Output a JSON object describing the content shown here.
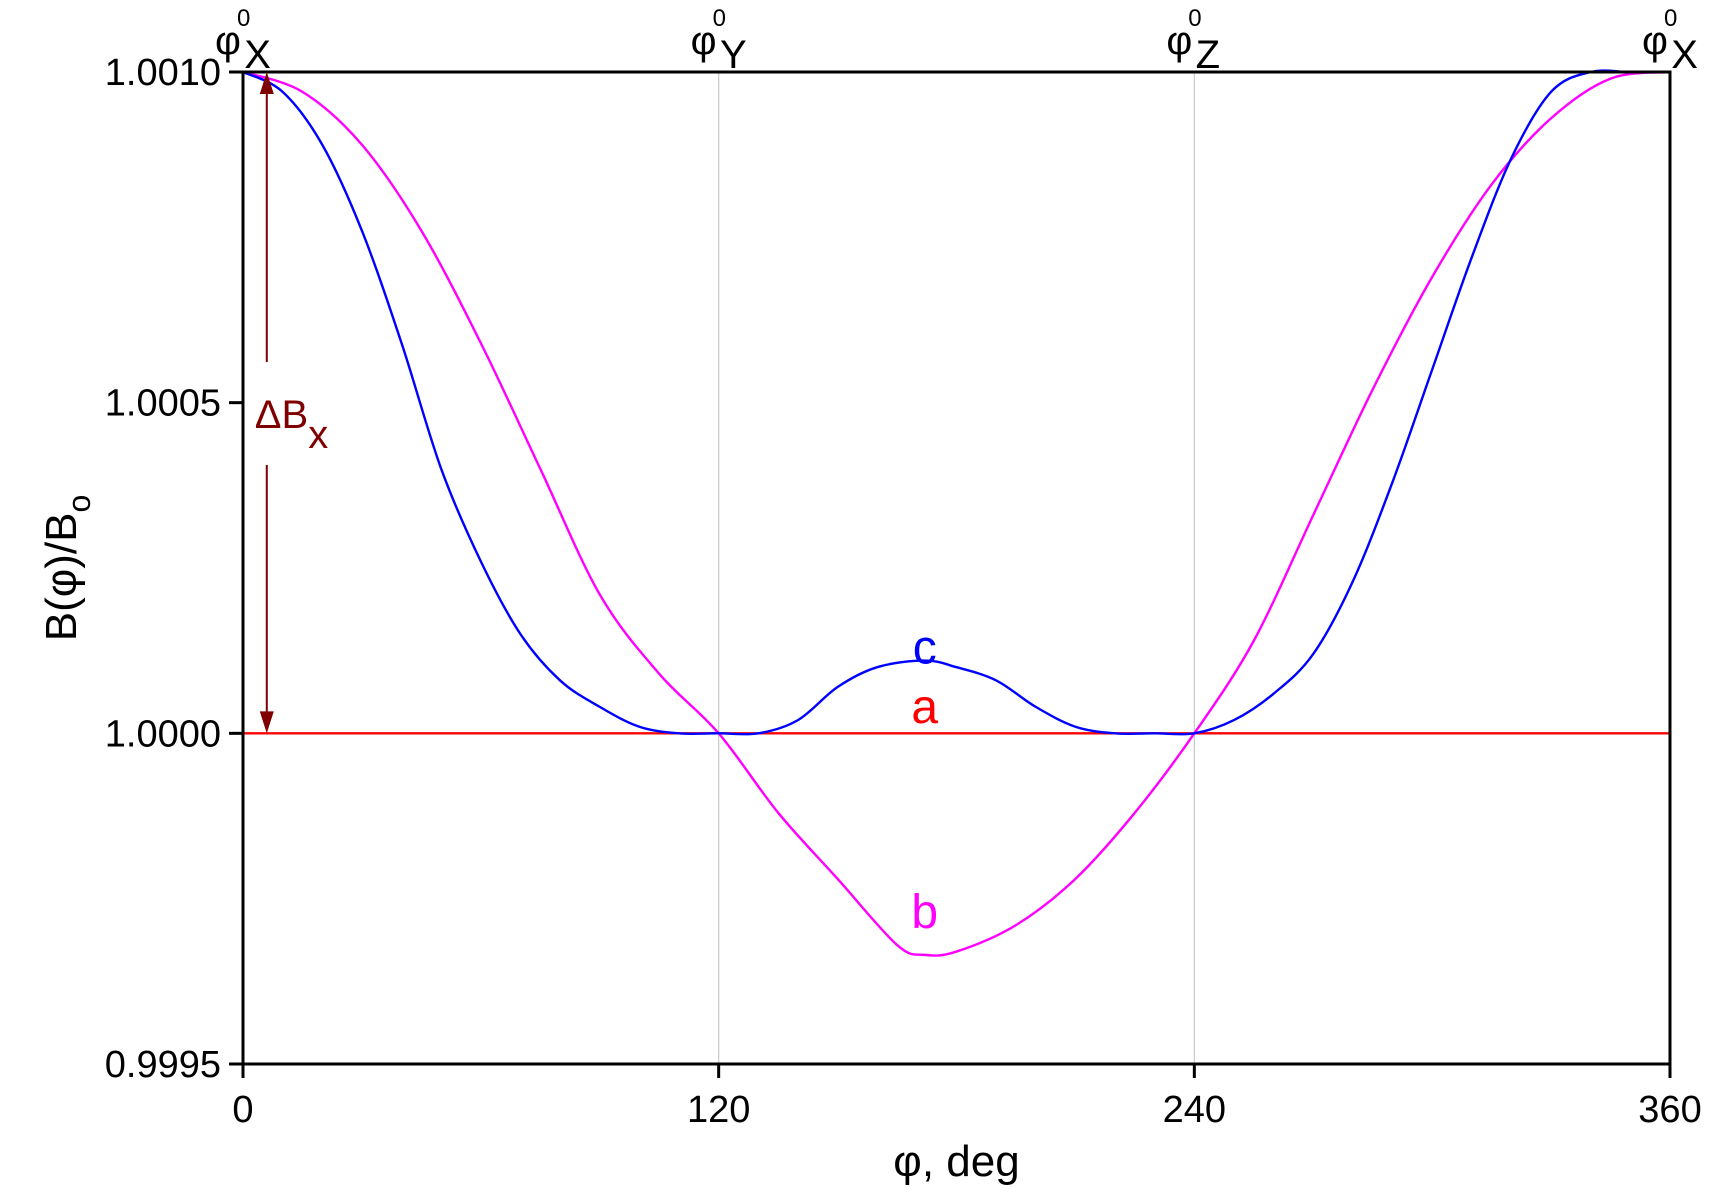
{
  "chart_data": {
    "type": "line",
    "xlabel": "φ, deg",
    "ylabel": {
      "main": "B(φ)/B",
      "sub": "o"
    },
    "xlim": [
      0,
      360
    ],
    "ylim": [
      0.9995,
      1.001
    ],
    "xticks": [
      0,
      120,
      240,
      360
    ],
    "xtick_labels": [
      "0",
      "120",
      "240",
      "360"
    ],
    "yticks": [
      0.9995,
      1.0,
      1.0005,
      1.001
    ],
    "ytick_labels": [
      "0.9995",
      "1.0000",
      "1.0005",
      "1.0010"
    ],
    "vertical_gridlines": [
      120,
      240
    ],
    "top_labels": [
      {
        "x": 0,
        "base": "φ",
        "sup": "0",
        "sub": "X"
      },
      {
        "x": 120,
        "base": "φ",
        "sup": "0",
        "sub": "Y"
      },
      {
        "x": 240,
        "base": "φ",
        "sup": "0",
        "sub": "Z"
      },
      {
        "x": 360,
        "base": "φ",
        "sup": "0",
        "sub": "X"
      }
    ],
    "series": [
      {
        "name": "a",
        "color": "#ff0000",
        "x": [
          0,
          360
        ],
        "y": [
          1.0,
          1.0
        ],
        "label_at": [
          172,
          1.00004
        ]
      },
      {
        "name": "b",
        "color": "#ff00ff",
        "x": [
          0,
          15,
          30,
          45,
          60,
          75,
          90,
          105,
          120,
          135,
          150,
          165,
          172,
          180,
          195,
          210,
          225,
          240,
          255,
          270,
          285,
          300,
          315,
          330,
          345,
          360
        ],
        "y": [
          1.001,
          1.00097,
          1.00089,
          1.00076,
          1.00059,
          1.0004,
          1.00021,
          1.00009,
          1.0,
          0.99988,
          0.99978,
          0.99968,
          0.999665,
          0.99967,
          0.99971,
          0.99978,
          0.99988,
          1.0,
          1.00014,
          1.00033,
          1.00052,
          1.00069,
          1.00083,
          1.00093,
          1.00099,
          1.001
        ],
        "label_at": [
          172,
          0.99973
        ]
      },
      {
        "name": "c",
        "color": "#0000ff",
        "x": [
          0,
          10,
          20,
          30,
          40,
          50,
          60,
          70,
          80,
          90,
          100,
          110,
          120,
          130,
          140,
          150,
          160,
          172,
          180,
          190,
          200,
          210,
          220,
          230,
          240,
          250,
          260,
          270,
          280,
          290,
          300,
          310,
          320,
          330,
          340,
          350,
          360
        ],
        "y": [
          1.001,
          1.00097,
          1.00089,
          1.00076,
          1.00059,
          1.0004,
          1.00026,
          1.00015,
          1.00008,
          1.00004,
          1.00001,
          1.0,
          1.0,
          1.0,
          1.00002,
          1.00007,
          1.0001,
          1.00011,
          1.0001,
          1.00008,
          1.00004,
          1.00001,
          1.0,
          1.0,
          1.0,
          1.00002,
          1.00006,
          1.00012,
          1.00023,
          1.00038,
          1.00055,
          1.00072,
          1.00087,
          1.00097,
          1.001,
          1.001,
          1.001
        ],
        "label_at": [
          172,
          1.00013
        ]
      }
    ],
    "annotation": {
      "base": "ΔB",
      "sub": "x",
      "color": "#7f0000",
      "x": 6,
      "y_from": 1.0,
      "y_to": 1.001
    }
  }
}
